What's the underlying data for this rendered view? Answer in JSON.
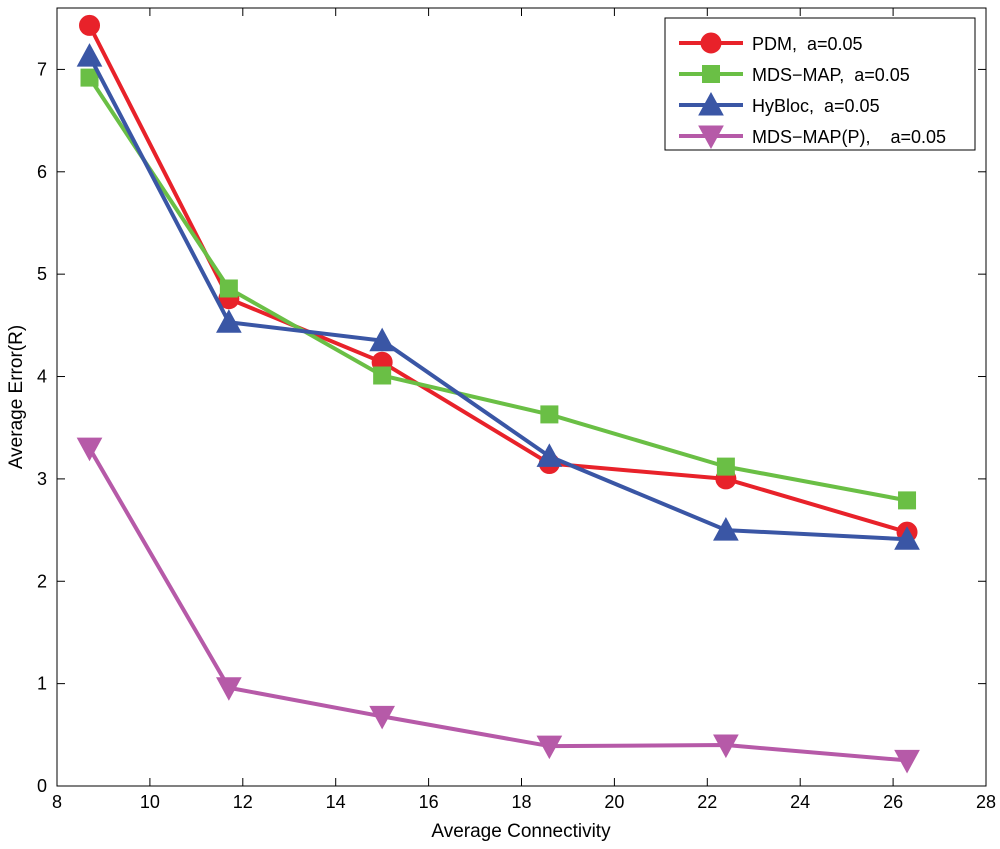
{
  "chart_data": {
    "type": "line",
    "title": "",
    "xlabel": "Average Connectivity",
    "ylabel": "Average Error(R)",
    "xlim": [
      8,
      28
    ],
    "ylim": [
      0,
      7.6
    ],
    "xticks": [
      8,
      10,
      12,
      14,
      16,
      18,
      20,
      22,
      24,
      26,
      28
    ],
    "yticks": [
      0,
      1,
      2,
      3,
      4,
      5,
      6,
      7
    ],
    "legend_position": "top-right",
    "grid": false,
    "series": [
      {
        "name": "PDM,  a=0.05",
        "color": "#e8222a",
        "marker": "circle",
        "x": [
          8.7,
          11.7,
          15.0,
          18.6,
          22.4,
          26.3
        ],
        "y": [
          7.43,
          4.76,
          4.14,
          3.15,
          3.0,
          2.48
        ]
      },
      {
        "name": "MDS−MAP,  a=0.05",
        "color": "#6abf45",
        "marker": "square",
        "x": [
          8.7,
          11.7,
          15.0,
          18.6,
          22.4,
          26.3
        ],
        "y": [
          6.92,
          4.86,
          4.01,
          3.63,
          3.12,
          2.79
        ]
      },
      {
        "name": "HyBloc,  a=0.05",
        "color": "#3a56a5",
        "marker": "triangle-up",
        "x": [
          8.7,
          11.7,
          15.0,
          18.6,
          22.4,
          26.3
        ],
        "y": [
          7.13,
          4.53,
          4.35,
          3.22,
          2.5,
          2.41
        ]
      },
      {
        "name": "MDS−MAP(P),    a=0.05",
        "color": "#b65aa8",
        "marker": "triangle-down",
        "x": [
          8.7,
          11.7,
          15.0,
          18.6,
          22.4,
          26.3
        ],
        "y": [
          3.3,
          0.96,
          0.68,
          0.39,
          0.4,
          0.25
        ]
      }
    ]
  }
}
